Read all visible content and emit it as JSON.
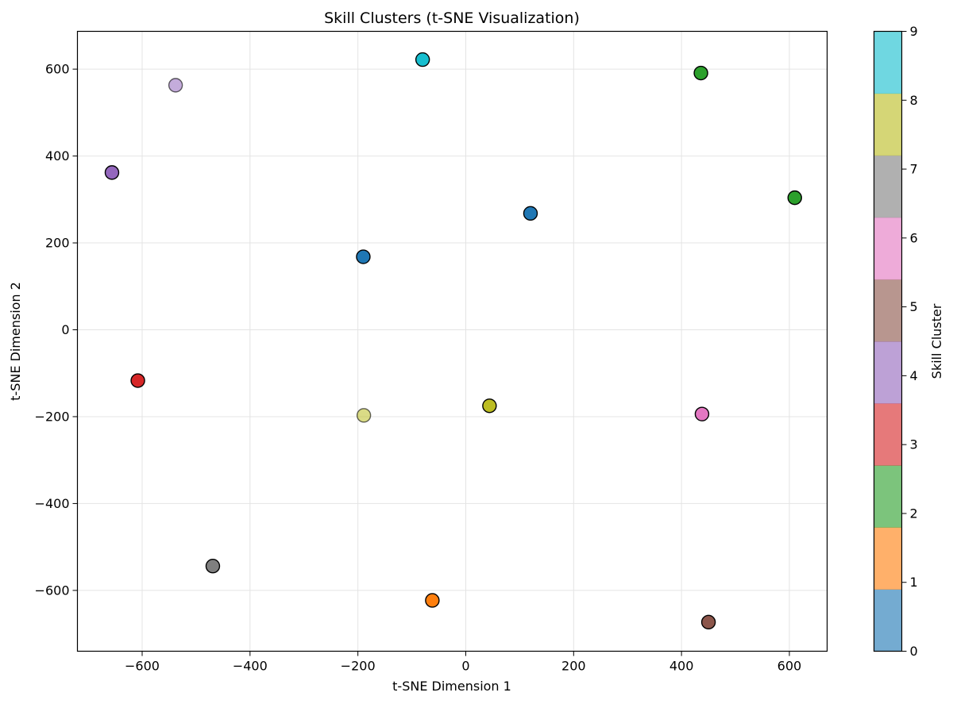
{
  "chart_data": {
    "type": "scatter",
    "title": "Skill Clusters (t-SNE Visualization)",
    "xlabel": "t-SNE Dimension 1",
    "ylabel": "t-SNE Dimension 2",
    "xlim": [
      -720,
      670
    ],
    "ylim": [
      -740,
      687
    ],
    "xticks": [
      -600,
      -400,
      -200,
      0,
      200,
      400,
      600
    ],
    "xtick_labels": [
      "−600",
      "−400",
      "−200",
      "0",
      "200",
      "400",
      "600"
    ],
    "yticks": [
      -600,
      -400,
      -200,
      0,
      200,
      400,
      600
    ],
    "ytick_labels": [
      "−600",
      "−400",
      "−200",
      "0",
      "200",
      "400",
      "600"
    ],
    "grid": true,
    "colormap": "tab10",
    "colorbar": {
      "label": "Skill Cluster",
      "range": [
        0,
        9
      ],
      "ticks": [
        0,
        1,
        2,
        3,
        4,
        5,
        6,
        7,
        8,
        9
      ],
      "tick_labels": [
        "0",
        "1",
        "2",
        "3",
        "4",
        "5",
        "6",
        "7",
        "8",
        "9"
      ],
      "bands": [
        {
          "from": 0,
          "to": 0.9,
          "color": "#1f77b4"
        },
        {
          "from": 0.9,
          "to": 1.8,
          "color": "#ff7f0e"
        },
        {
          "from": 1.8,
          "to": 2.7,
          "color": "#2ca02c"
        },
        {
          "from": 2.7,
          "to": 3.6,
          "color": "#d62728"
        },
        {
          "from": 3.6,
          "to": 4.5,
          "color": "#9467bd"
        },
        {
          "from": 4.5,
          "to": 5.4,
          "color": "#8c564b"
        },
        {
          "from": 5.4,
          "to": 6.3,
          "color": "#e377c2"
        },
        {
          "from": 6.3,
          "to": 7.2,
          "color": "#7f7f7f"
        },
        {
          "from": 7.2,
          "to": 8.1,
          "color": "#bcbd22"
        },
        {
          "from": 8.1,
          "to": 9.0,
          "color": "#17becf"
        }
      ]
    },
    "points": [
      {
        "x": 120,
        "y": 268,
        "cluster": 0,
        "color": "#1f77b4"
      },
      {
        "x": -190,
        "y": 168,
        "cluster": 0,
        "color": "#1f77b4"
      },
      {
        "x": -62,
        "y": -623,
        "cluster": 1,
        "color": "#ff7f0e"
      },
      {
        "x": 436,
        "y": 591,
        "cluster": 2,
        "color": "#2ca02c"
      },
      {
        "x": 610,
        "y": 304,
        "cluster": 2,
        "color": "#2ca02c"
      },
      {
        "x": -608,
        "y": -117,
        "cluster": 3,
        "color": "#d62728"
      },
      {
        "x": -656,
        "y": 362,
        "cluster": 4,
        "color": "#9467bd"
      },
      {
        "x": -538,
        "y": 563,
        "cluster": 4,
        "color": "#9467bd",
        "faded": true
      },
      {
        "x": 450,
        "y": -673,
        "cluster": 5,
        "color": "#8c564b"
      },
      {
        "x": 438,
        "y": -194,
        "cluster": 6,
        "color": "#e377c2"
      },
      {
        "x": -469,
        "y": -544,
        "cluster": 7,
        "color": "#7f7f7f"
      },
      {
        "x": 44,
        "y": -175,
        "cluster": 8,
        "color": "#bcbd22"
      },
      {
        "x": -189,
        "y": -197,
        "cluster": 8,
        "color": "#bcbd22",
        "faded": true
      },
      {
        "x": -80,
        "y": 622,
        "cluster": 9,
        "color": "#17becf"
      }
    ]
  }
}
